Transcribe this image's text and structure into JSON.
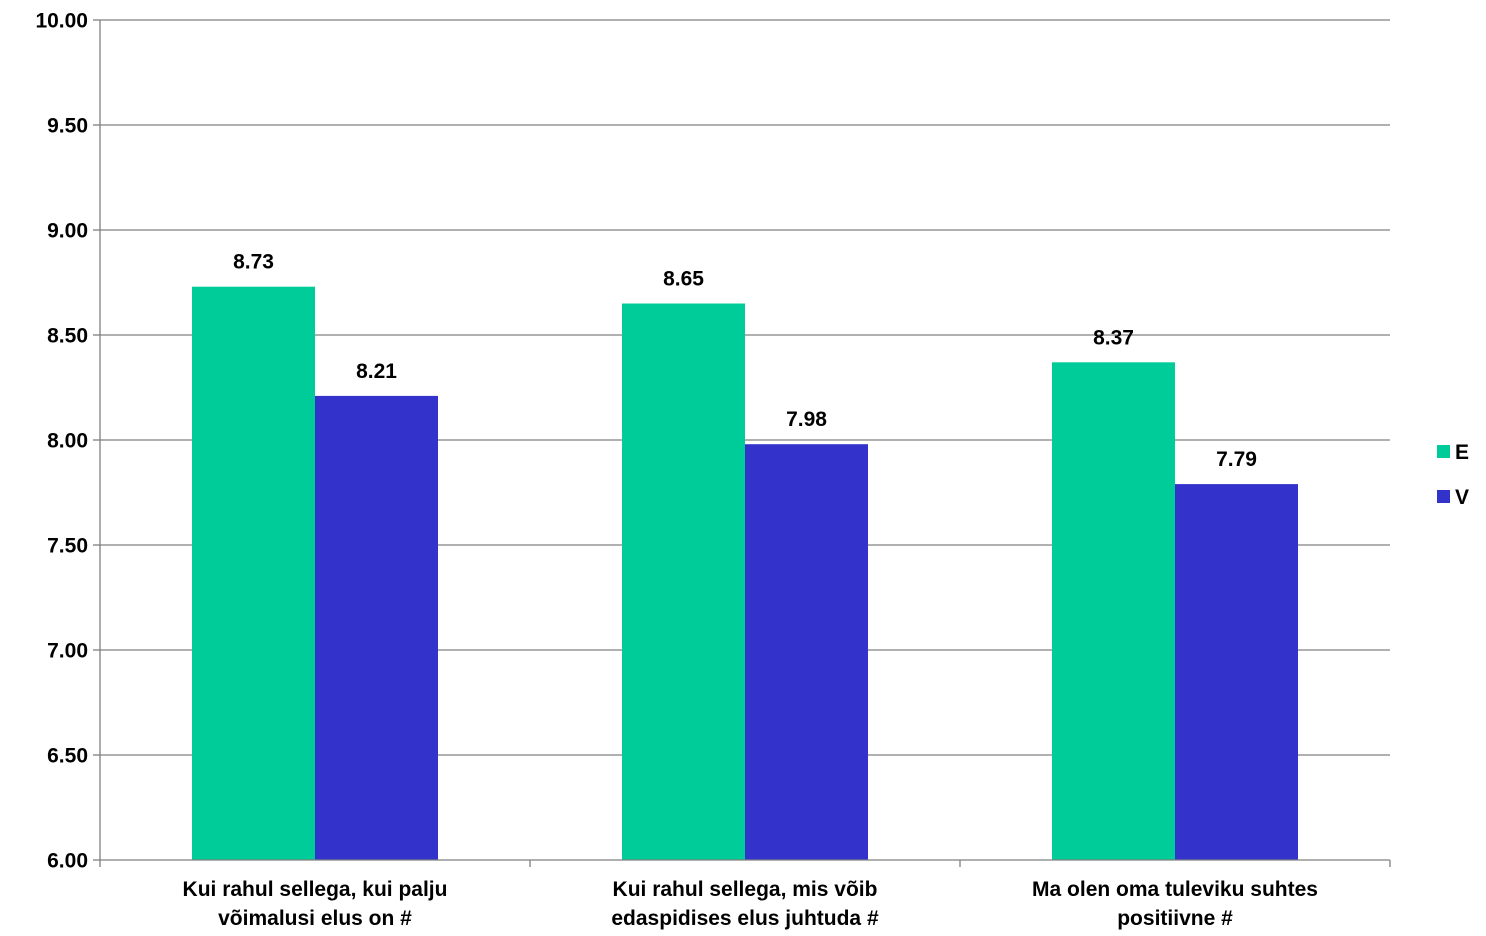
{
  "chart_data": {
    "type": "bar",
    "categories": [
      [
        "Kui rahul sellega, kui palju",
        "võimalusi elus on #"
      ],
      [
        "Kui rahul sellega, mis võib",
        "edaspidises elus juhtuda #"
      ],
      [
        "Ma olen oma tuleviku suhtes",
        "positiivne #"
      ]
    ],
    "series": [
      {
        "name": "E",
        "values": [
          8.73,
          8.65,
          8.37
        ],
        "color": "#00CC99"
      },
      {
        "name": "V",
        "values": [
          8.21,
          7.98,
          7.79
        ],
        "color": "#3333CC"
      }
    ],
    "ylim": [
      6.0,
      10.0
    ],
    "y_ticks": [
      "6.00",
      "6.50",
      "7.00",
      "7.50",
      "8.00",
      "8.50",
      "9.00",
      "9.50",
      "10.00"
    ],
    "gridlines": true,
    "grid_color": "#808080",
    "legend_position": "right",
    "data_labels": true,
    "title": "",
    "xlabel": "",
    "ylabel": ""
  }
}
